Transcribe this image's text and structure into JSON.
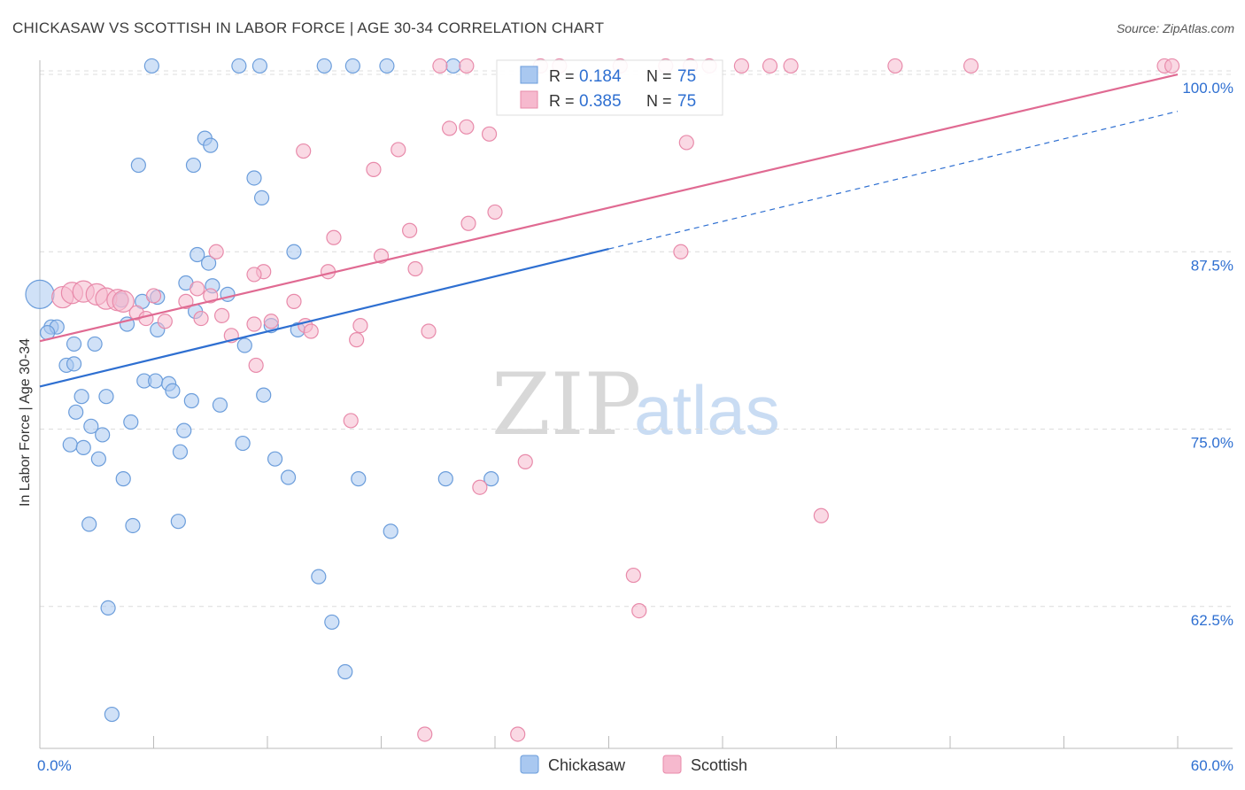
{
  "header": {
    "title": "CHICKASAW VS SCOTTISH IN LABOR FORCE | AGE 30-34 CORRELATION CHART",
    "source": "Source: ZipAtlas.com"
  },
  "watermark": {
    "zip": "ZIP",
    "atlas": "atlas"
  },
  "legend_top": [
    {
      "r_label": "R =",
      "r_value": "0.184",
      "n_label": "N =",
      "n_value": "75"
    },
    {
      "r_label": "R =",
      "r_value": "0.385",
      "n_label": "N =",
      "n_value": "75"
    }
  ],
  "legend_bottom": [
    "Chickasaw",
    "Scottish"
  ],
  "colors": {
    "chickasaw_fill": "#a9c8f0",
    "chickasaw_stroke": "#6b9ddb",
    "chickasaw_line": "#2e6fd1",
    "scottish_fill": "#f6b9ce",
    "scottish_stroke": "#e88aaa",
    "scottish_line": "#e06a92",
    "value_text": "#2e6fd1",
    "grid": "#dcdcdc"
  },
  "chart_data": {
    "type": "scatter",
    "title": "CHICKASAW VS SCOTTISH IN LABOR FORCE | AGE 30-34 CORRELATION CHART",
    "xlabel": "",
    "ylabel": "In Labor Force | Age 30-34",
    "xlim": [
      0,
      60
    ],
    "ylim": [
      52.5,
      101.5
    ],
    "x_tick_labels": [
      {
        "value": 0,
        "label": "0.0%"
      },
      {
        "value": 60,
        "label": "60.0%"
      }
    ],
    "y_tick_labels": [
      {
        "value": 100,
        "label": "100.0%"
      },
      {
        "value": 87.5,
        "label": "87.5%"
      },
      {
        "value": 75,
        "label": "75.0%"
      },
      {
        "value": 62.5,
        "label": "62.5%"
      }
    ],
    "series": [
      {
        "name": "Chickasaw",
        "R": 0.184,
        "N": 75,
        "trend": {
          "x0": 0,
          "y0": 78.0,
          "x1": 30,
          "y1": 87.7,
          "dashed_to_x": 60,
          "dashed_to_y": 97.4
        },
        "points": [
          [
            5.9,
            100.6
          ],
          [
            10.5,
            100.6
          ],
          [
            11.6,
            100.6
          ],
          [
            15.0,
            100.6
          ],
          [
            16.5,
            100.6
          ],
          [
            18.3,
            100.6
          ],
          [
            21.8,
            100.6
          ],
          [
            8.7,
            95.5
          ],
          [
            9.0,
            95.0
          ],
          [
            5.2,
            93.6
          ],
          [
            8.1,
            93.6
          ],
          [
            11.3,
            92.7
          ],
          [
            11.7,
            91.3
          ],
          [
            8.3,
            87.3
          ],
          [
            8.9,
            86.7
          ],
          [
            13.4,
            87.5
          ],
          [
            0.0,
            84.5
          ],
          [
            5.4,
            84.0
          ],
          [
            6.2,
            84.3
          ],
          [
            7.7,
            85.3
          ],
          [
            9.1,
            85.1
          ],
          [
            9.9,
            84.5
          ],
          [
            4.3,
            84.1
          ],
          [
            4.6,
            82.4
          ],
          [
            6.2,
            82.0
          ],
          [
            8.2,
            83.3
          ],
          [
            12.2,
            82.3
          ],
          [
            13.6,
            82.0
          ],
          [
            0.6,
            82.2
          ],
          [
            0.9,
            82.2
          ],
          [
            0.4,
            81.8
          ],
          [
            1.8,
            81.0
          ],
          [
            2.9,
            81.0
          ],
          [
            1.4,
            79.5
          ],
          [
            1.8,
            79.6
          ],
          [
            10.8,
            80.9
          ],
          [
            5.5,
            78.4
          ],
          [
            6.1,
            78.4
          ],
          [
            6.8,
            78.2
          ],
          [
            7.0,
            77.7
          ],
          [
            2.2,
            77.3
          ],
          [
            3.5,
            77.3
          ],
          [
            8.0,
            77.0
          ],
          [
            9.5,
            76.7
          ],
          [
            11.8,
            77.4
          ],
          [
            1.9,
            76.2
          ],
          [
            2.7,
            75.2
          ],
          [
            3.3,
            74.6
          ],
          [
            4.8,
            75.5
          ],
          [
            7.6,
            74.9
          ],
          [
            1.6,
            73.9
          ],
          [
            2.3,
            73.7
          ],
          [
            3.1,
            72.9
          ],
          [
            7.4,
            73.4
          ],
          [
            10.7,
            74.0
          ],
          [
            12.4,
            72.9
          ],
          [
            4.4,
            71.5
          ],
          [
            13.1,
            71.6
          ],
          [
            16.8,
            71.5
          ],
          [
            21.4,
            71.5
          ],
          [
            23.8,
            71.5
          ],
          [
            2.6,
            68.3
          ],
          [
            4.9,
            68.2
          ],
          [
            7.3,
            68.5
          ],
          [
            18.5,
            67.8
          ],
          [
            14.7,
            64.6
          ],
          [
            3.6,
            62.4
          ],
          [
            15.4,
            61.4
          ],
          [
            16.1,
            57.9
          ],
          [
            3.8,
            54.9
          ]
        ]
      },
      {
        "name": "Scottish",
        "R": 0.385,
        "N": 75,
        "trend": {
          "x0": 0,
          "y0": 81.2,
          "x1": 60,
          "y1": 100.0
        },
        "points": [
          [
            21.1,
            100.6
          ],
          [
            22.5,
            100.6
          ],
          [
            26.4,
            100.6
          ],
          [
            27.4,
            100.6
          ],
          [
            30.6,
            100.6
          ],
          [
            33.0,
            100.6
          ],
          [
            34.3,
            100.6
          ],
          [
            35.3,
            100.6
          ],
          [
            37.0,
            100.6
          ],
          [
            38.5,
            100.6
          ],
          [
            39.6,
            100.6
          ],
          [
            45.1,
            100.6
          ],
          [
            49.1,
            100.6
          ],
          [
            59.3,
            100.6
          ],
          [
            59.7,
            100.6
          ],
          [
            21.6,
            96.2
          ],
          [
            22.5,
            96.3
          ],
          [
            23.7,
            95.8
          ],
          [
            34.1,
            95.2
          ],
          [
            13.9,
            94.6
          ],
          [
            18.9,
            94.7
          ],
          [
            17.6,
            93.3
          ],
          [
            24.0,
            90.3
          ],
          [
            22.6,
            89.5
          ],
          [
            19.5,
            89.0
          ],
          [
            15.5,
            88.5
          ],
          [
            18.0,
            87.2
          ],
          [
            19.8,
            86.3
          ],
          [
            15.2,
            86.1
          ],
          [
            9.3,
            87.5
          ],
          [
            33.8,
            87.5
          ],
          [
            11.8,
            86.1
          ],
          [
            11.3,
            85.9
          ],
          [
            1.2,
            84.3
          ],
          [
            1.7,
            84.6
          ],
          [
            2.3,
            84.7
          ],
          [
            3.0,
            84.5
          ],
          [
            3.5,
            84.2
          ],
          [
            4.1,
            84.1
          ],
          [
            4.4,
            84.0
          ],
          [
            6.0,
            84.4
          ],
          [
            7.7,
            84.0
          ],
          [
            8.3,
            84.9
          ],
          [
            9.0,
            84.4
          ],
          [
            13.4,
            84.0
          ],
          [
            14.0,
            82.3
          ],
          [
            5.1,
            83.2
          ],
          [
            5.6,
            82.8
          ],
          [
            6.6,
            82.6
          ],
          [
            8.5,
            82.8
          ],
          [
            9.6,
            83.0
          ],
          [
            11.3,
            82.4
          ],
          [
            12.2,
            82.6
          ],
          [
            16.9,
            82.3
          ],
          [
            14.3,
            81.9
          ],
          [
            20.5,
            81.9
          ],
          [
            10.1,
            81.6
          ],
          [
            16.7,
            81.3
          ],
          [
            11.4,
            79.5
          ],
          [
            16.4,
            75.6
          ],
          [
            25.6,
            72.7
          ],
          [
            23.2,
            70.9
          ],
          [
            41.2,
            68.9
          ],
          [
            31.3,
            64.7
          ],
          [
            31.6,
            62.2
          ],
          [
            20.3,
            53.5
          ],
          [
            25.2,
            53.5
          ]
        ]
      }
    ]
  }
}
